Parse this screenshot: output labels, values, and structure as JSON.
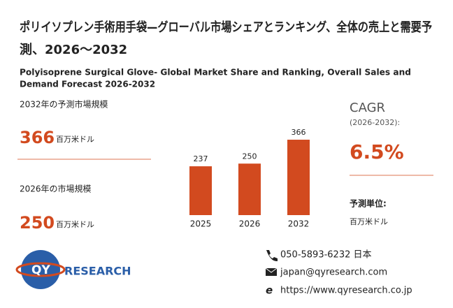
{
  "header": {
    "title_line1": "ポリイソプレン手術用手袋—グローバル市場シェアとランキング、全体の売上と需要予",
    "title_line2": "測、2026～2032",
    "subtitle_line1": "Polyisoprene Surgical Glove- Global Market Share and Ranking, Overall Sales and",
    "subtitle_line2": "Demand Forecast 2026-2032"
  },
  "left": {
    "label_2032": "2032年の予測市場規模",
    "value_2032": "366",
    "unit_2032": "百万米ドル",
    "label_2026": "2026年の市場規模",
    "value_2026": "250",
    "unit_2026": "百万米ドル"
  },
  "right": {
    "cagr": "CAGR",
    "period": "(2026-2032):",
    "rate": "6.5%",
    "unit_label": "予測単位:",
    "unit": "百万米ドル"
  },
  "chart_data": {
    "type": "bar",
    "categories": [
      "2025",
      "2026",
      "2032"
    ],
    "values": [
      237,
      250,
      366
    ],
    "color": "#d24a1f"
  },
  "logo": {
    "mark": "QY",
    "text": "RESEARCH"
  },
  "contact": {
    "phone": "050-5893-6232 日本",
    "email": "japan@qyresearch.com",
    "web": "https://www.qyresearch.co.jp"
  }
}
